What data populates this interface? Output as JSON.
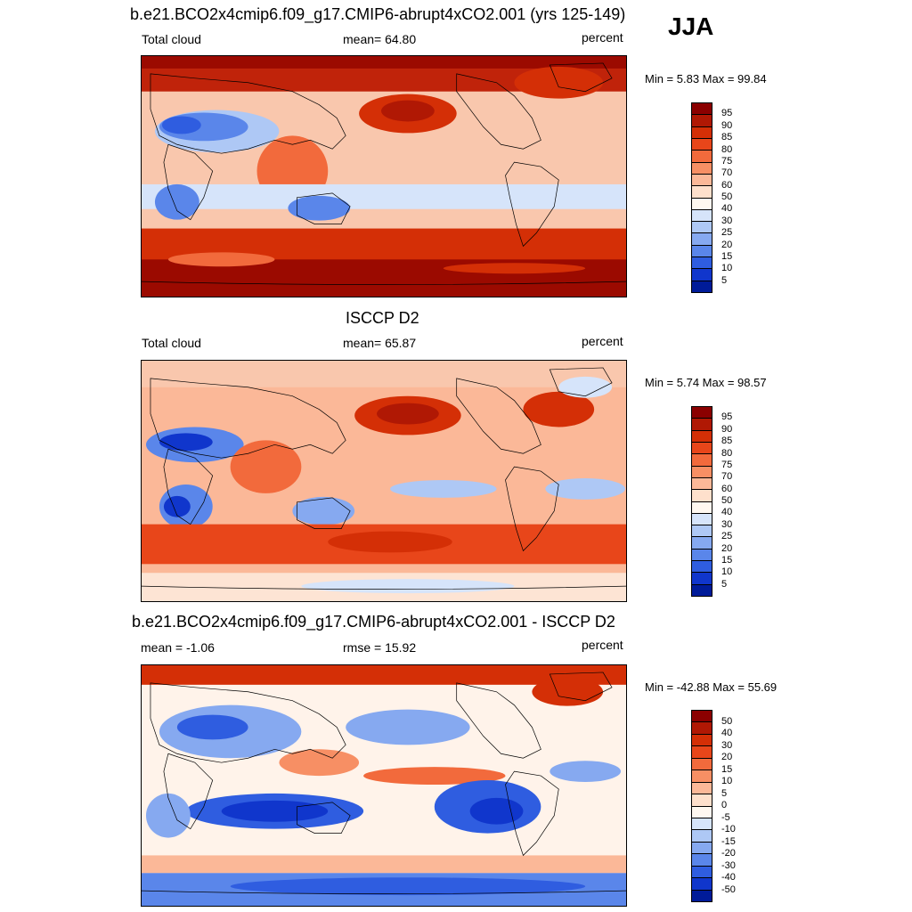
{
  "season": "JJA",
  "panels": [
    {
      "title": "b.e21.BCO2x4cmip6.f09_g17.CMIP6-abrupt4xCO2.001 (yrs 125-149)",
      "left_label": "Total cloud",
      "center_label": "mean=  64.80",
      "right_label": "percent",
      "minmax": "Min =   5.83 Max =  99.84",
      "colorbar_labels": [
        "95",
        "90",
        "85",
        "80",
        "75",
        "70",
        "60",
        "50",
        "40",
        "30",
        "25",
        "20",
        "15",
        "10",
        "5"
      ]
    },
    {
      "title": "ISCCP D2",
      "left_label": "Total cloud",
      "center_label": "mean=  65.87",
      "right_label": "percent",
      "minmax": "Min =   5.74 Max =  98.57",
      "colorbar_labels": [
        "95",
        "90",
        "85",
        "80",
        "75",
        "70",
        "60",
        "50",
        "40",
        "30",
        "25",
        "20",
        "15",
        "10",
        "5"
      ]
    },
    {
      "title": "b.e21.BCO2x4cmip6.f09_g17.CMIP6-abrupt4xCO2.001 - ISCCP D2",
      "left_label": "mean =  -1.06",
      "center_label": "rmse =  15.92",
      "right_label": "percent",
      "minmax": "Min = -42.88 Max =  55.69",
      "colorbar_labels": [
        "50",
        "40",
        "30",
        "20",
        "15",
        "10",
        "5",
        "0",
        "-5",
        "-10",
        "-15",
        "-20",
        "-30",
        "-40",
        "-50"
      ]
    }
  ],
  "colorbar_colors": [
    "#8b0000",
    "#b01804",
    "#d42f06",
    "#e8461a",
    "#f26a3c",
    "#f78f64",
    "#fbb898",
    "#fee0cc",
    "#fff8f0",
    "#d6e4fa",
    "#aec8f5",
    "#86a9f0",
    "#5a86ea",
    "#2f5de0",
    "#1036cc",
    "#001b99"
  ]
}
